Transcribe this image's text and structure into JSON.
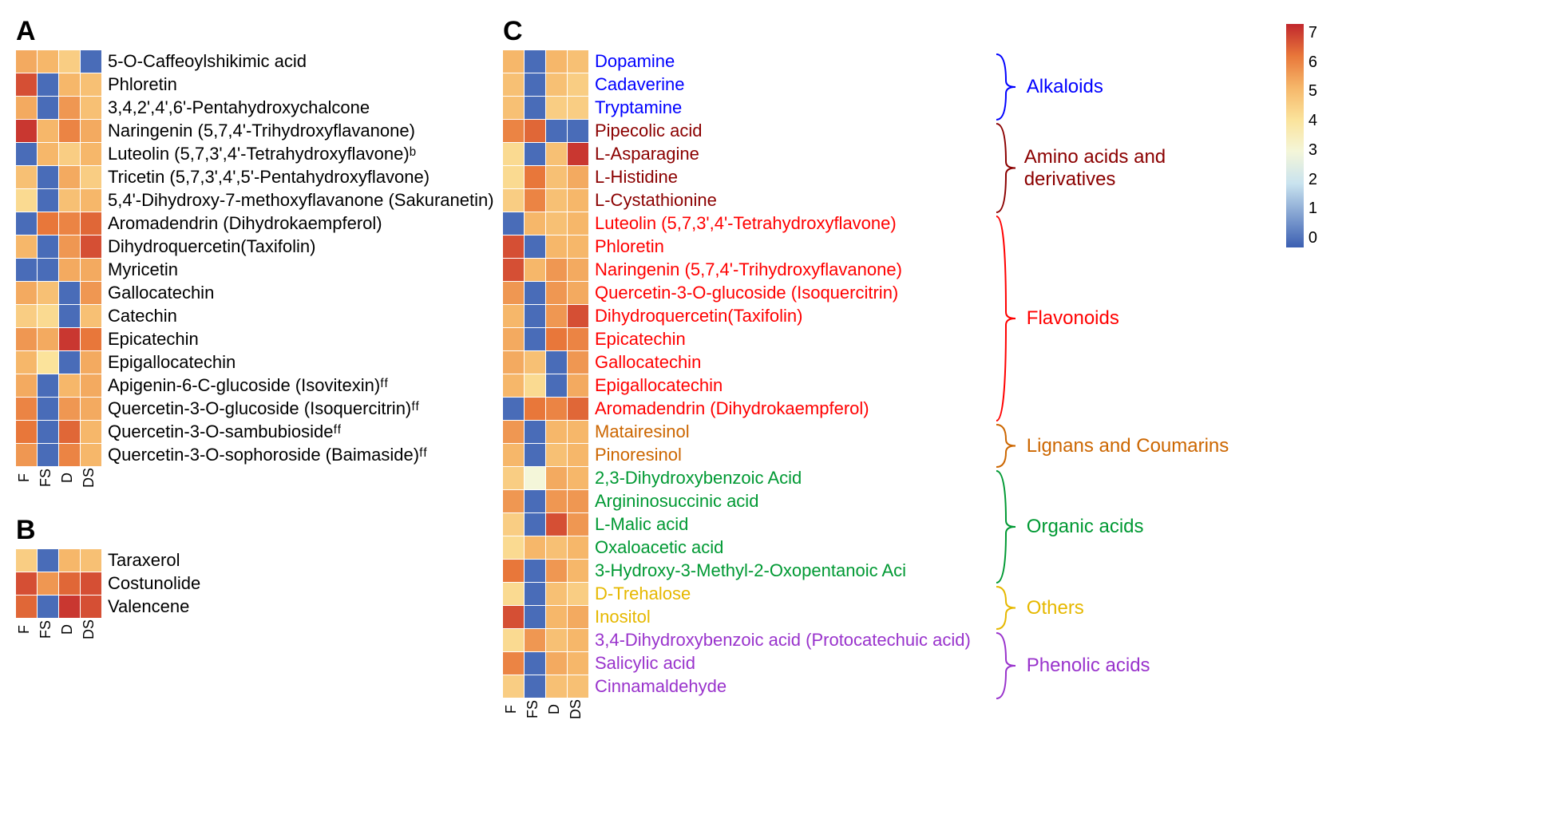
{
  "colormap": {
    "stops": [
      {
        "v": 0,
        "c": "#3b5fb2"
      },
      {
        "v": 2,
        "c": "#c9e3ef"
      },
      {
        "v": 3,
        "c": "#f4f6d9"
      },
      {
        "v": 4,
        "c": "#fbe39b"
      },
      {
        "v": 5,
        "c": "#f6b76a"
      },
      {
        "v": 6,
        "c": "#e8773a"
      },
      {
        "v": 7,
        "c": "#c1272d"
      }
    ],
    "min": 0,
    "max": 7,
    "ticks": [
      7,
      6,
      5,
      4,
      3,
      2,
      1,
      0
    ]
  },
  "columns": [
    "F",
    "FS",
    "D",
    "DS"
  ],
  "panelA": {
    "label": "A",
    "rows": [
      {
        "label": "5-O-Caffeoylshikimic acid",
        "vals": [
          5.2,
          5.0,
          4.5,
          0.2
        ]
      },
      {
        "label": "Phloretin",
        "vals": [
          6.5,
          0.2,
          5.0,
          4.8
        ]
      },
      {
        "label": "3,4,2',4',6'-Pentahydroxychalcone",
        "vals": [
          5.2,
          0.2,
          5.5,
          4.8
        ]
      },
      {
        "label": "Naringenin (5,7,4'-Trihydroxyflavanone)",
        "vals": [
          6.8,
          5.0,
          5.8,
          5.2
        ]
      },
      {
        "label": "Luteolin (5,7,3',4'-Tetrahydroxyflavone)ᵇ",
        "vals": [
          0.2,
          5.0,
          4.5,
          5.0
        ]
      },
      {
        "label": "Tricetin (5,7,3',4',5'-Pentahydroxyflavone)",
        "vals": [
          4.8,
          0.2,
          5.2,
          4.5
        ]
      },
      {
        "label": "5,4'-Dihydroxy-7-methoxyflavanone (Sakuranetin)",
        "vals": [
          4.2,
          0.2,
          4.8,
          5.0
        ]
      },
      {
        "label": "Aromadendrin (Dihydrokaempferol)",
        "vals": [
          0.2,
          6.0,
          5.8,
          6.2
        ]
      },
      {
        "label": "Dihydroquercetin(Taxifolin)",
        "vals": [
          5.0,
          0.2,
          5.5,
          6.5
        ]
      },
      {
        "label": "Myricetin",
        "vals": [
          0.2,
          0.2,
          5.2,
          5.2
        ]
      },
      {
        "label": "Gallocatechin",
        "vals": [
          5.2,
          4.8,
          0.2,
          5.5
        ]
      },
      {
        "label": "Catechin",
        "vals": [
          4.5,
          4.2,
          0.2,
          4.8
        ]
      },
      {
        "label": "Epicatechin",
        "vals": [
          5.5,
          5.2,
          6.8,
          6.0
        ]
      },
      {
        "label": "Epigallocatechin",
        "vals": [
          5.0,
          4.0,
          0.2,
          5.2
        ]
      },
      {
        "label": "Apigenin-6-C-glucoside (Isovitexin)ᶠᶠ",
        "vals": [
          5.2,
          0.2,
          5.0,
          5.2
        ]
      },
      {
        "label": "Quercetin-3-O-glucoside (Isoquercitrin)ᶠᶠ",
        "vals": [
          5.8,
          0.2,
          5.5,
          5.2
        ]
      },
      {
        "label": "Quercetin-3-O-sambubiosideᶠᶠ",
        "vals": [
          6.0,
          0.2,
          6.2,
          5.0
        ]
      },
      {
        "label": "Quercetin-3-O-sophoroside (Baimaside)ᶠᶠ",
        "vals": [
          5.5,
          0.2,
          5.8,
          5.0
        ]
      }
    ]
  },
  "panelB": {
    "label": "B",
    "rows": [
      {
        "label": "Taraxerol",
        "vals": [
          4.5,
          0.2,
          5.0,
          4.8
        ]
      },
      {
        "label": "Costunolide",
        "vals": [
          6.5,
          5.5,
          6.2,
          6.5
        ]
      },
      {
        "label": "Valencene",
        "vals": [
          6.2,
          0.2,
          6.8,
          6.5
        ]
      }
    ]
  },
  "panelC": {
    "label": "C",
    "groups": [
      {
        "name": "Alkaloids",
        "color": "#0000ff",
        "rows": [
          {
            "label": "Dopamine",
            "vals": [
              5.0,
              0.2,
              5.0,
              4.8
            ]
          },
          {
            "label": "Cadaverine",
            "vals": [
              4.8,
              0.2,
              4.8,
              4.5
            ]
          },
          {
            "label": "Tryptamine",
            "vals": [
              4.8,
              0.2,
              4.5,
              4.5
            ]
          }
        ]
      },
      {
        "name": "Amino acids and derivatives",
        "color": "#8b0000",
        "rows": [
          {
            "label": "Pipecolic acid",
            "vals": [
              5.8,
              6.2,
              0.2,
              0.2
            ]
          },
          {
            "label": "L-Asparagine",
            "vals": [
              4.2,
              0.2,
              4.8,
              6.8
            ]
          },
          {
            "label": "L-Histidine",
            "vals": [
              4.2,
              6.0,
              4.8,
              5.2
            ]
          },
          {
            "label": "L-Cystathionine",
            "vals": [
              4.5,
              5.8,
              4.8,
              5.0
            ]
          }
        ]
      },
      {
        "name": "Flavonoids",
        "color": "#ff0000",
        "rows": [
          {
            "label": "Luteolin (5,7,3',4'-Tetrahydroxyflavone)",
            "vals": [
              0.2,
              5.0,
              4.8,
              5.0
            ]
          },
          {
            "label": "Phloretin",
            "vals": [
              6.5,
              0.2,
              5.0,
              5.0
            ]
          },
          {
            "label": "Naringenin (5,7,4'-Trihydroxyflavanone)",
            "vals": [
              6.5,
              5.0,
              5.5,
              5.2
            ]
          },
          {
            "label": "Quercetin-3-O-glucoside (Isoquercitrin)",
            "vals": [
              5.5,
              0.2,
              5.5,
              5.2
            ]
          },
          {
            "label": "Dihydroquercetin(Taxifolin)",
            "vals": [
              5.0,
              0.2,
              5.5,
              6.5
            ]
          },
          {
            "label": "Epicatechin",
            "vals": [
              5.2,
              0.2,
              6.0,
              5.8
            ]
          },
          {
            "label": "Gallocatechin",
            "vals": [
              5.2,
              4.8,
              0.2,
              5.5
            ]
          },
          {
            "label": "Epigallocatechin",
            "vals": [
              5.0,
              4.2,
              0.2,
              5.2
            ]
          },
          {
            "label": "Aromadendrin (Dihydrokaempferol)",
            "vals": [
              0.2,
              6.0,
              5.8,
              6.2
            ]
          }
        ]
      },
      {
        "name": "Lignans and Coumarins",
        "color": "#cc6600",
        "rows": [
          {
            "label": "Matairesinol",
            "vals": [
              5.5,
              0.2,
              5.0,
              5.0
            ]
          },
          {
            "label": "Pinoresinol",
            "vals": [
              5.0,
              0.2,
              4.8,
              5.0
            ]
          }
        ]
      },
      {
        "name": "Organic acids",
        "color": "#009933",
        "rows": [
          {
            "label": "2,3-Dihydroxybenzoic Acid",
            "vals": [
              4.5,
              3.0,
              5.2,
              5.0
            ]
          },
          {
            "label": "Argininosuccinic acid",
            "vals": [
              5.5,
              0.2,
              5.5,
              5.5
            ]
          },
          {
            "label": "L-Malic acid",
            "vals": [
              4.5,
              0.2,
              6.5,
              5.5
            ]
          },
          {
            "label": "Oxaloacetic acid",
            "vals": [
              4.2,
              5.0,
              4.8,
              5.0
            ]
          },
          {
            "label": "3-Hydroxy-3-Methyl-2-Oxopentanoic Aci",
            "vals": [
              6.0,
              0.2,
              5.5,
              5.0
            ]
          }
        ]
      },
      {
        "name": "Others",
        "color": "#e6b800",
        "rows": [
          {
            "label": "D-Trehalose",
            "vals": [
              4.2,
              0.2,
              4.8,
              4.5
            ]
          },
          {
            "label": "Inositol",
            "vals": [
              6.5,
              0.2,
              5.0,
              5.2
            ]
          }
        ]
      },
      {
        "name": "Phenolic acids",
        "color": "#9933cc",
        "rows": [
          {
            "label": "3,4-Dihydroxybenzoic acid (Protocatechuic acid)",
            "vals": [
              4.2,
              5.5,
              4.8,
              5.0
            ]
          },
          {
            "label": "Salicylic acid",
            "vals": [
              5.8,
              0.2,
              5.2,
              5.0
            ]
          },
          {
            "label": "Cinnamaldehyde",
            "vals": [
              4.5,
              0.2,
              4.8,
              4.8
            ]
          }
        ]
      }
    ]
  }
}
